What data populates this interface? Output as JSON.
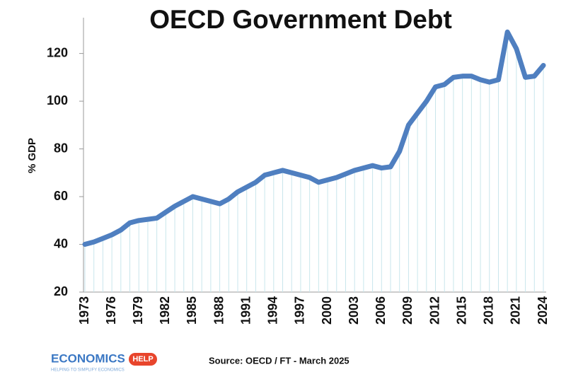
{
  "chart_data": {
    "type": "line",
    "title": "OECD Government Debt",
    "y_label": "% GDP",
    "x": [
      1973,
      1974,
      1975,
      1976,
      1977,
      1978,
      1979,
      1980,
      1981,
      1982,
      1983,
      1984,
      1985,
      1986,
      1987,
      1988,
      1989,
      1990,
      1991,
      1992,
      1993,
      1994,
      1995,
      1996,
      1997,
      1998,
      1999,
      2000,
      2001,
      2002,
      2003,
      2004,
      2005,
      2006,
      2007,
      2008,
      2009,
      2010,
      2011,
      2012,
      2013,
      2014,
      2015,
      2016,
      2017,
      2018,
      2019,
      2020,
      2021,
      2022,
      2023,
      2024
    ],
    "series": [
      {
        "name": "OECD government debt",
        "color": "#4f7fc0",
        "values": [
          40,
          41,
          42.5,
          44,
          46,
          49,
          50,
          50.5,
          51,
          53.5,
          56,
          58,
          60,
          59,
          58,
          57,
          59,
          62,
          64,
          66,
          69,
          70,
          71,
          70,
          69,
          68,
          66,
          67,
          68,
          69.5,
          71,
          72,
          73,
          72,
          72.5,
          79,
          90,
          95,
          100,
          106,
          107,
          110,
          110.5,
          110.5,
          109,
          108,
          109,
          129,
          122,
          110,
          110.5,
          115
        ]
      }
    ],
    "xlim": [
      1973,
      2024
    ],
    "xticks": [
      1973,
      1976,
      1979,
      1982,
      1985,
      1988,
      1991,
      1994,
      1997,
      2000,
      2003,
      2006,
      2009,
      2012,
      2015,
      2018,
      2021,
      2024
    ],
    "ylim": [
      20,
      135
    ],
    "yticks": [
      20,
      40,
      60,
      80,
      100,
      120
    ],
    "grid": true,
    "grid_color": "#c9e6ec",
    "source": "Source: OECD / FT - March 2025"
  },
  "logo": {
    "name": "ECONOMICS",
    "badge": "HELP",
    "tagline": "HELPING TO SIMPLIFY ECONOMICS"
  }
}
